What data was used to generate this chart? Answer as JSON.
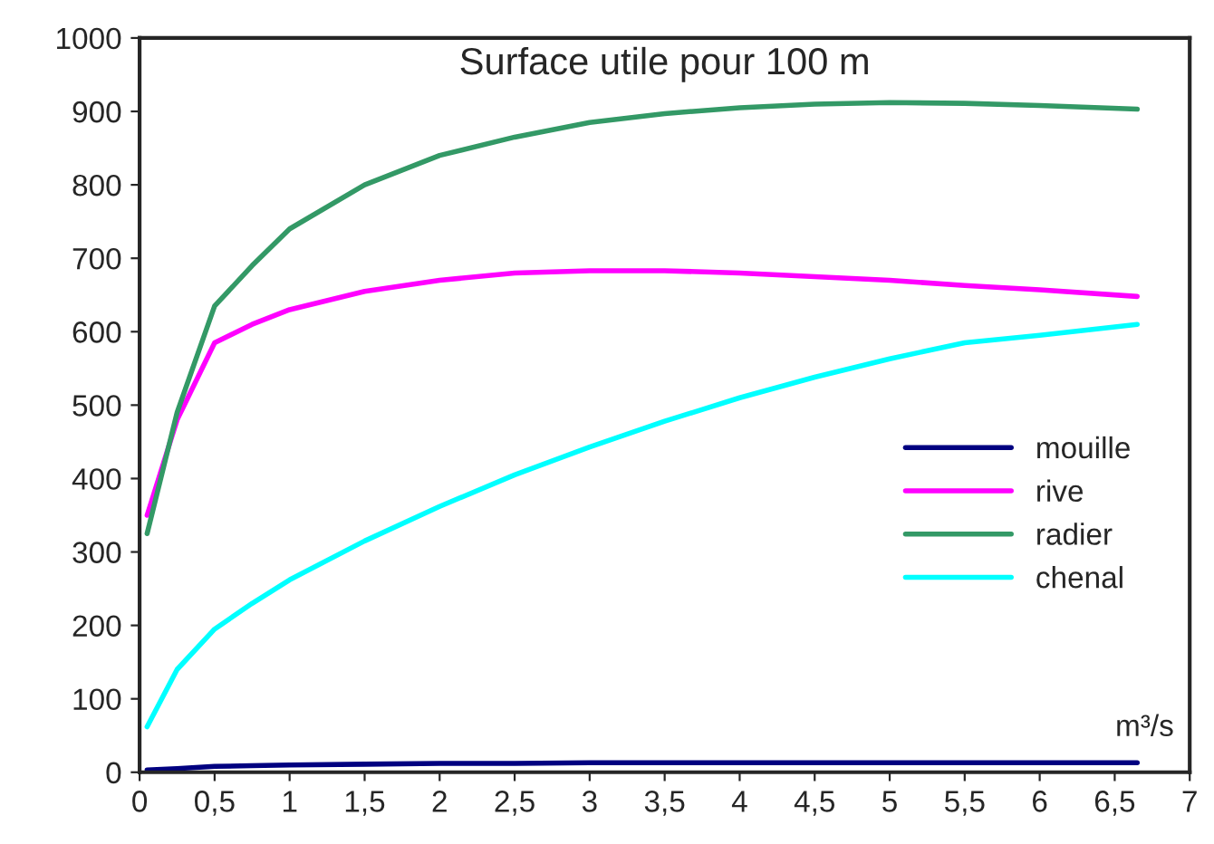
{
  "chart_data": {
    "type": "line",
    "title": "Surface utile pour 100 m",
    "x": [
      0.05,
      0.25,
      0.5,
      0.75,
      1,
      1.5,
      2,
      2.5,
      3,
      3.5,
      4,
      4.5,
      5,
      5.5,
      6,
      6.65
    ],
    "series": [
      {
        "name": "mouille",
        "color": "#000080",
        "values": [
          3,
          5,
          8,
          9,
          10,
          11,
          12,
          12,
          13,
          13,
          13,
          13,
          13,
          13,
          13,
          13
        ]
      },
      {
        "name": "rive",
        "color": "#ff00ff",
        "values": [
          350,
          480,
          585,
          610,
          630,
          655,
          670,
          680,
          683,
          683,
          680,
          675,
          670,
          663,
          657,
          648
        ]
      },
      {
        "name": "radier",
        "color": "#339966",
        "values": [
          325,
          490,
          635,
          690,
          740,
          800,
          840,
          865,
          885,
          897,
          905,
          910,
          912,
          911,
          908,
          903
        ]
      },
      {
        "name": "chenal",
        "color": "#00ffff",
        "values": [
          62,
          140,
          195,
          230,
          262,
          315,
          362,
          405,
          443,
          478,
          510,
          538,
          563,
          585,
          595,
          610
        ]
      }
    ],
    "xlim": [
      0,
      7
    ],
    "xticks": [
      0,
      {
        "value": 0.5,
        "label": "0,5"
      },
      1,
      {
        "value": 1.5,
        "label": "1,5"
      },
      2,
      {
        "value": 2.5,
        "label": "2,5"
      },
      3,
      {
        "value": 3.5,
        "label": "3,5"
      },
      4,
      {
        "value": 4.5,
        "label": "4,5"
      },
      5,
      {
        "value": 5.5,
        "label": "5,5"
      },
      6,
      {
        "value": 6.5,
        "label": "6,5"
      },
      7
    ],
    "ylim": [
      0,
      1000
    ],
    "yticks": [
      0,
      100,
      200,
      300,
      400,
      500,
      600,
      700,
      800,
      900,
      1000
    ],
    "annotations": [
      "m³/s"
    ],
    "grid": false,
    "legend": "right",
    "marker": "none",
    "line_style": "solid"
  }
}
